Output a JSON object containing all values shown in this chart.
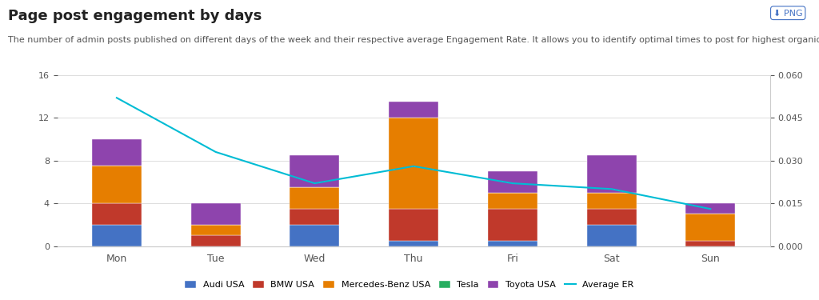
{
  "title": "Page post engagement by days",
  "subtitle": "The number of admin posts published on different days of the week and their respective average Engagement Rate. It allows you to identify optimal times to post for highest organic reach.",
  "days": [
    "Mon",
    "Tue",
    "Wed",
    "Thu",
    "Fri",
    "Sat",
    "Sun"
  ],
  "brands": [
    "Audi USA",
    "BMW USA",
    "Mercedes-Benz USA",
    "Tesla",
    "Toyota USA"
  ],
  "colors": [
    "#4472C4",
    "#C0392B",
    "#E67E00",
    "#27AE60",
    "#8E44AD"
  ],
  "values": {
    "Audi USA": [
      2.0,
      0.0,
      2.0,
      0.5,
      0.5,
      2.0,
      0.0
    ],
    "BMW USA": [
      2.0,
      1.0,
      1.5,
      3.0,
      3.0,
      1.5,
      0.5
    ],
    "Mercedes-Benz USA": [
      3.5,
      1.0,
      2.0,
      8.5,
      1.5,
      1.5,
      2.5
    ],
    "Tesla": [
      0.0,
      0.0,
      0.0,
      0.0,
      0.0,
      0.0,
      0.0
    ],
    "Toyota USA": [
      2.5,
      2.0,
      3.0,
      1.5,
      2.0,
      3.5,
      1.0
    ]
  },
  "avg_er": [
    0.052,
    0.033,
    0.022,
    0.028,
    0.022,
    0.02,
    0.013
  ],
  "avg_er_scale": 266.67,
  "ylim_left": [
    0,
    16
  ],
  "ylim_right": [
    0,
    0.06
  ],
  "yticks_left": [
    0,
    4,
    8,
    12,
    16
  ],
  "yticks_right": [
    0.0,
    0.015,
    0.03,
    0.045,
    0.06
  ],
  "background_color": "#FFFFFF",
  "bar_width": 0.5,
  "line_color": "#00BCD4",
  "legend_items": [
    "Audi USA",
    "BMW USA",
    "Mercedes-Benz USA",
    "Tesla",
    "Toyota USA",
    "Average ER"
  ],
  "line_legend_color": "#00BCD4",
  "title_fontsize": 13,
  "subtitle_fontsize": 8,
  "png_button_color": "#4472C4"
}
